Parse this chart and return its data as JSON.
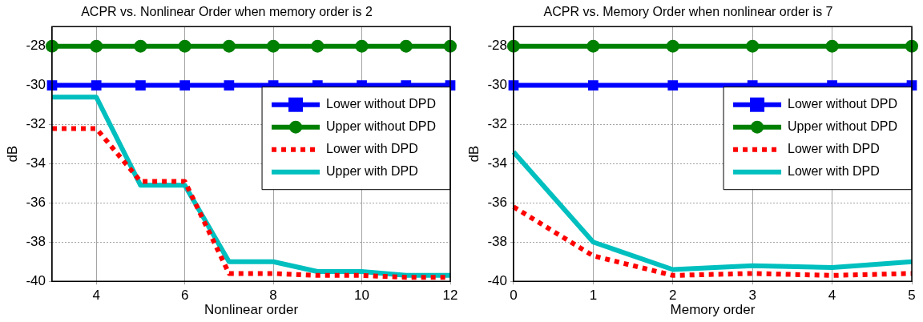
{
  "chart_data": [
    {
      "type": "line",
      "title": "ACPR vs. Nonlinear Order when memory order is 2",
      "xlabel": "Nonlinear order",
      "ylabel": "dB",
      "x": [
        3,
        4,
        5,
        6,
        7,
        8,
        9,
        10,
        11,
        12
      ],
      "xlim": [
        3,
        12
      ],
      "xticks": [
        4,
        6,
        8,
        10,
        12
      ],
      "ylim": [
        -40,
        -27
      ],
      "yticks": [
        -40,
        -38,
        -36,
        -34,
        -32,
        -30,
        -28
      ],
      "grid": true,
      "legend": "top right",
      "series": [
        {
          "name": "Lower without DPD",
          "color": "#0000ff",
          "marker": "square",
          "line_style": "solid",
          "values": [
            -30,
            -30,
            -30,
            -30,
            -30,
            -30,
            -30,
            -30,
            -30,
            -30
          ]
        },
        {
          "name": "Upper without DPD",
          "color": "#008000",
          "marker": "circle",
          "line_style": "solid",
          "values": [
            -28,
            -28,
            -28,
            -28,
            -28,
            -28,
            -28,
            -28,
            -28,
            -28
          ]
        },
        {
          "name": "Lower with DPD",
          "color": "#ff0000",
          "marker": "none",
          "line_style": "dotted",
          "values": [
            -32.2,
            -32.2,
            -34.9,
            -34.9,
            -39.6,
            -39.6,
            -39.7,
            -39.7,
            -39.8,
            -39.8
          ]
        },
        {
          "name": "Upper with DPD",
          "color": "#00bfbf",
          "marker": "none",
          "line_style": "solid",
          "values": [
            -30.6,
            -30.6,
            -35.1,
            -35.1,
            -39.0,
            -39.0,
            -39.5,
            -39.5,
            -39.7,
            -39.7
          ]
        }
      ]
    },
    {
      "type": "line",
      "title": "ACPR vs. Memory Order when nonlinear order is 7",
      "xlabel": "Memory order",
      "ylabel": "dB",
      "x": [
        0,
        1,
        2,
        3,
        4,
        5
      ],
      "xlim": [
        0,
        5
      ],
      "xticks": [
        0,
        1,
        2,
        3,
        4,
        5
      ],
      "ylim": [
        -40,
        -27
      ],
      "yticks": [
        -40,
        -38,
        -36,
        -34,
        -32,
        -30,
        -28
      ],
      "grid": true,
      "legend": "top right",
      "series": [
        {
          "name": "Lower without DPD",
          "color": "#0000ff",
          "marker": "square",
          "line_style": "solid",
          "values": [
            -30,
            -30,
            -30,
            -30,
            -30,
            -30
          ]
        },
        {
          "name": "Upper without DPD",
          "color": "#008000",
          "marker": "circle",
          "line_style": "solid",
          "values": [
            -28,
            -28,
            -28,
            -28,
            -28,
            -28
          ]
        },
        {
          "name": "Lower with DPD",
          "color": "#ff0000",
          "marker": "none",
          "line_style": "dotted",
          "values": [
            -36.2,
            -38.7,
            -39.7,
            -39.6,
            -39.7,
            -39.6
          ]
        },
        {
          "name": "Lower with DPD",
          "color": "#00bfbf",
          "marker": "none",
          "line_style": "solid",
          "values": [
            -33.4,
            -38.0,
            -39.4,
            -39.2,
            -39.3,
            -39.0
          ]
        }
      ]
    }
  ]
}
